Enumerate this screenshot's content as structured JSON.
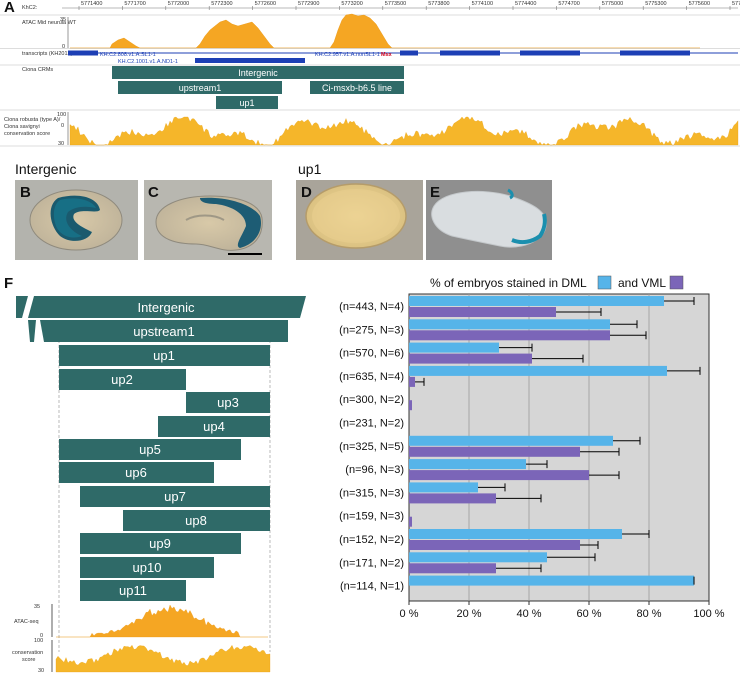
{
  "panel_labels": {
    "a": "A",
    "b": "B",
    "c": "C",
    "d": "D",
    "e": "E",
    "f": "F"
  },
  "browser": {
    "chrom": "KhC2:",
    "coords": [
      "5771400",
      "5771700",
      "5772000",
      "5772300",
      "5772600",
      "5772900",
      "5773200",
      "5773500",
      "5773800",
      "5774100",
      "5774400",
      "5774700",
      "5775000",
      "5775300",
      "5775600",
      "5775900"
    ],
    "atac_label": "ATAC Mid neurula WT",
    "atac_max": "35",
    "atac_min": "0",
    "transcripts_label": "transcripts (KH2012)",
    "transcript_names": [
      "KH.C2.808.v1.A.SL1-1",
      "KH.C2.1001.v1.A.ND1-1",
      "KH.C2.957.v1.A.nonSL1-1",
      "Msx"
    ],
    "crm_label": "Ciona CRMs",
    "crms": [
      "Intergenic",
      "upstream1",
      "up1",
      "Ci-msxb-b6.5 line"
    ],
    "conservation_label": [
      "Ciona robusta (type A)/",
      "Ciona savignyi",
      "conservation score"
    ],
    "cons_max": "100",
    "cons_mid": "0",
    "cons_min": "30"
  },
  "sections": {
    "intergenic": "Intergenic",
    "up1": "up1"
  },
  "fragments": [
    "Intergenic",
    "upstream1",
    "up1",
    "up2",
    "up3",
    "up4",
    "up5",
    "up6",
    "up7",
    "up8",
    "up9",
    "up10",
    "up11"
  ],
  "track_labels": {
    "atac": "ATAC-seq",
    "atac_max": "35",
    "atac_min": "0",
    "conservation": [
      "conservation",
      "score"
    ],
    "cons_max": "100",
    "cons_min": "30"
  },
  "legend": {
    "prefix": "% of embryos stained in DML",
    "and": "and VML",
    "dml_color": "#56b4e9",
    "vml_color": "#7b65b8"
  },
  "chart_data": {
    "type": "bar",
    "orientation": "horizontal",
    "title": "% of embryos stained in DML and VML",
    "categories": [
      "(n=443, N=4)",
      "(n=275, N=3)",
      "(n=570, N=6)",
      "(n=635, N=4)",
      "(n=300, N=2)",
      "(n=231, N=2)",
      "(n=325, N=5)",
      "(n=96, N=3)",
      "(n=315, N=3)",
      "(n=159, N=3)",
      "(n=152, N=2)",
      "(n=171, N=2)",
      "(n=114, N=1)"
    ],
    "series": [
      {
        "name": "DML",
        "color": "#56b4e9",
        "values": [
          85,
          67,
          30,
          86,
          0,
          0,
          68,
          39,
          23,
          0,
          71,
          46,
          95
        ],
        "errors": [
          10,
          9,
          11,
          11,
          0,
          0,
          9,
          7,
          9,
          0,
          9,
          16,
          0
        ]
      },
      {
        "name": "VML",
        "color": "#7b65b8",
        "values": [
          49,
          67,
          41,
          2,
          1,
          0,
          57,
          60,
          29,
          1,
          57,
          29,
          0
        ],
        "errors": [
          15,
          12,
          17,
          3,
          0,
          0,
          13,
          10,
          15,
          0,
          6,
          15,
          0
        ]
      }
    ],
    "xlim": [
      0,
      100
    ],
    "xticks": [
      "0 %",
      "20 %",
      "40 %",
      "60 %",
      "80 %",
      "100 %"
    ]
  }
}
